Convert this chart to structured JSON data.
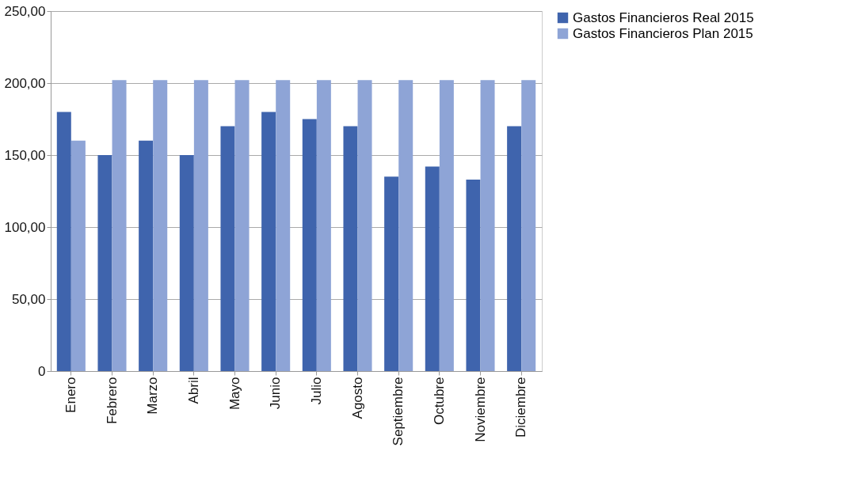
{
  "chart_data": {
    "type": "bar",
    "categories": [
      "Enero",
      "Febrero",
      "Marzo",
      "Abril",
      "Mayo",
      "Junio",
      "Julio",
      "Agosto",
      "Septiembre",
      "Octubre",
      "Noviembre",
      "Diciembre"
    ],
    "series": [
      {
        "name": "Gastos Financieros Real 2015",
        "color": "#3f64ad",
        "values": [
          180,
          150,
          160,
          150,
          170,
          180,
          175,
          170,
          135,
          142,
          133,
          170
        ]
      },
      {
        "name": "Gastos Financieros Plan 2015",
        "color": "#8ea4d6",
        "values": [
          160,
          202,
          202,
          202,
          202,
          202,
          202,
          202,
          202,
          202,
          202,
          202
        ]
      }
    ],
    "ylim": [
      0,
      250
    ],
    "yticks": [
      0,
      {
        "value": 50,
        "label": "50,00"
      },
      {
        "value": 100,
        "label": "100,00"
      },
      {
        "value": 150,
        "label": "150,00"
      },
      {
        "value": 200,
        "label": "200,00"
      },
      {
        "value": 250,
        "label": "250,00"
      }
    ],
    "grid": "y",
    "legend": "right"
  }
}
